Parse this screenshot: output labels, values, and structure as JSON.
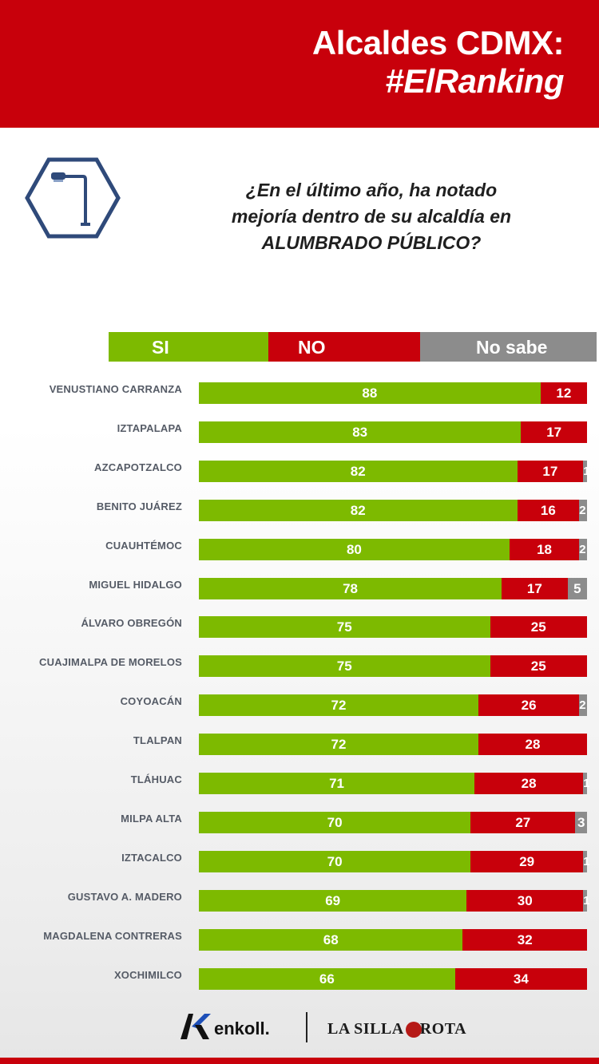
{
  "header": {
    "title_line1": "Alcaldes CDMX:",
    "title_line2": "#ElRanking"
  },
  "icon": "streetlight-hexagon-icon",
  "question": {
    "line1": "¿En el último año, ha notado",
    "line2": "mejoría dentro de su alcaldía en",
    "line3": "ALUMBRADO PÚBLICO?"
  },
  "colors": {
    "si": "#7dba00",
    "no": "#c8000b",
    "no_sabe": "#8c8c8c",
    "header": "#c8000b"
  },
  "chart_data": {
    "type": "bar",
    "orientation": "horizontal",
    "stacked": true,
    "legend_position": "top",
    "categories": [
      "VENUSTIANO CARRANZA",
      "IZTAPALAPA",
      "AZCAPOTZALCO",
      "BENITO JUÁREZ",
      "CUAUHTÉMOC",
      "MIGUEL HIDALGO",
      "ÁLVARO OBREGÓN",
      "CUAJIMALPA DE MORELOS",
      "COYOACÁN",
      "TLALPAN",
      "TLÁHUAC",
      "MILPA ALTA",
      "IZTACALCO",
      "GUSTAVO A. MADERO",
      "MAGDALENA CONTRERAS",
      "XOCHIMILCO"
    ],
    "series": [
      {
        "name": "SI",
        "values": [
          88,
          83,
          82,
          82,
          80,
          78,
          75,
          75,
          72,
          72,
          71,
          70,
          70,
          69,
          68,
          66
        ]
      },
      {
        "name": "NO",
        "values": [
          12,
          17,
          17,
          16,
          18,
          17,
          25,
          25,
          26,
          28,
          28,
          27,
          29,
          30,
          32,
          34
        ]
      },
      {
        "name": "No sabe",
        "values": [
          null,
          null,
          1,
          2,
          2,
          5,
          null,
          null,
          2,
          null,
          1,
          3,
          1,
          1,
          null,
          null
        ]
      }
    ]
  },
  "footer": {
    "brand1": "enkoll.",
    "brand2_part1": "LA SILLA",
    "brand2_part2": "ROTA"
  }
}
